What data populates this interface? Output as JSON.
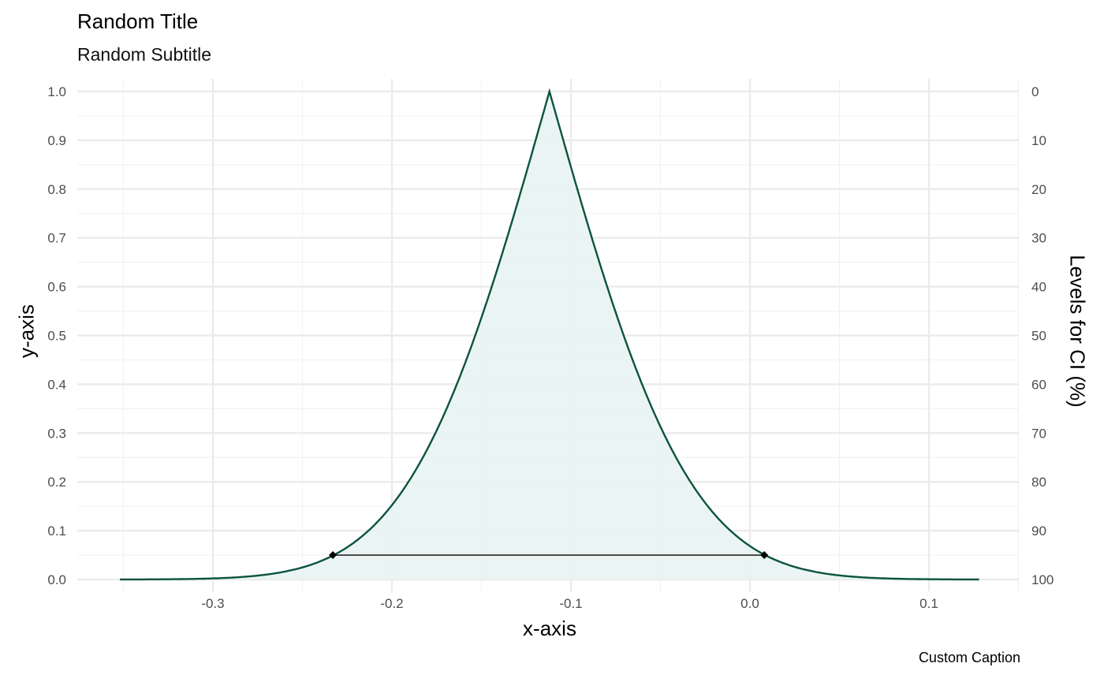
{
  "chart_data": {
    "type": "area",
    "title": "Random Title",
    "subtitle": "Random Subtitle",
    "caption": "Custom Caption",
    "xlabel": "x-axis",
    "ylabel": "y-axis",
    "y2label": "Levels for CI (%)",
    "xlim": [
      -0.352,
      0.128
    ],
    "ylim": [
      0,
      1
    ],
    "xticks": [
      "-0.3",
      "-0.2",
      "-0.1",
      "0.0",
      "0.1"
    ],
    "yticks": [
      "0.0",
      "0.1",
      "0.2",
      "0.3",
      "0.4",
      "0.5",
      "0.6",
      "0.7",
      "0.8",
      "0.9",
      "1.0"
    ],
    "y2ticks": [
      "100",
      "90",
      "80",
      "70",
      "60",
      "50",
      "40",
      "30",
      "20",
      "10",
      "0"
    ],
    "grid": true,
    "point_estimate": -0.112,
    "interval": {
      "level": 0.95,
      "lower": -0.233,
      "upper": 0.008,
      "y": 0.05
    },
    "colors": {
      "line": "#0b5340",
      "fill": "#e8f4f2",
      "interval": "#000000",
      "grid": "#ebebeb"
    }
  }
}
